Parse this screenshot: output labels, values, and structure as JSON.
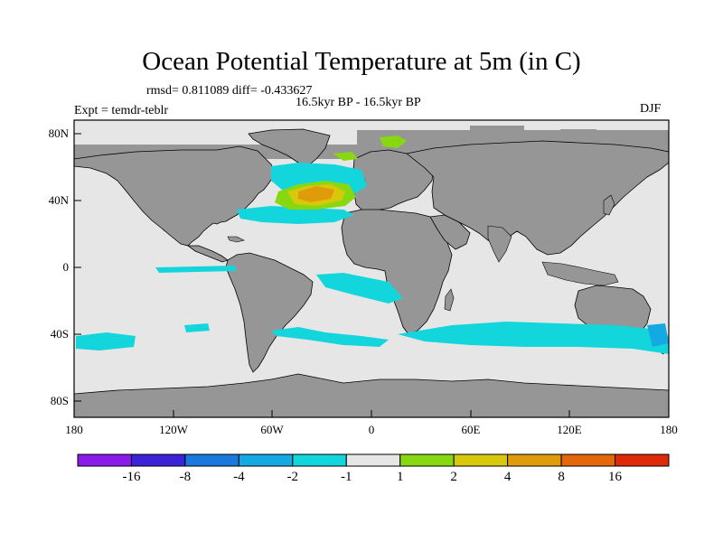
{
  "title": "Ocean Potential Temperature at 5m (in C)",
  "stats": "rmsd= 0.811089 diff= -0.433627",
  "period": "16.5kyr BP - 16.5kyr BP",
  "experiment": "Expt = temdr-teblr",
  "season": "DJF",
  "axes": {
    "lat_labels": [
      "80N",
      "40N",
      "0",
      "40S",
      "80S"
    ],
    "lon_labels": [
      "180",
      "120W",
      "60W",
      "0",
      "60E",
      "120E",
      "180"
    ]
  },
  "colorbar": {
    "colors": [
      "#8a1bea",
      "#3b24d8",
      "#1b78dc",
      "#15a9e4",
      "#13d6dc",
      "#e6e6e6",
      "#88d811",
      "#d7c80c",
      "#e09b0a",
      "#e4670b",
      "#df2a09"
    ],
    "labels": [
      "-16",
      "-8",
      "-4",
      "-2",
      "-1",
      "1",
      "2",
      "4",
      "8",
      "16"
    ]
  },
  "colors": {
    "land": "#969696",
    "ocean_neutral": "#e6e6e6",
    "frame": "#000000"
  }
}
